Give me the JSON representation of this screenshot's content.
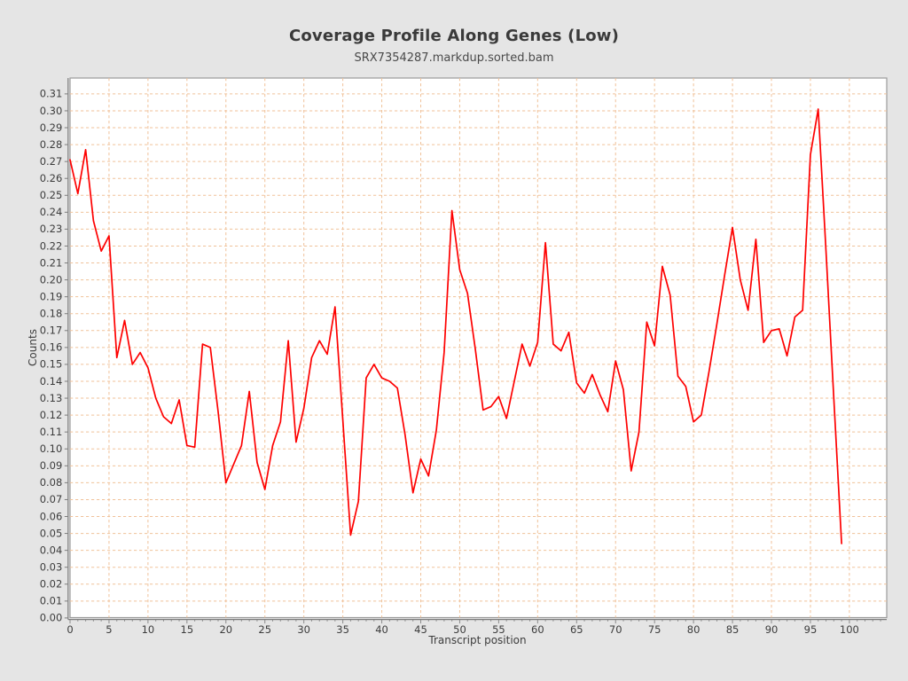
{
  "page": {
    "background_color": "#e5e5e5",
    "plot_background_color": "#ffffff"
  },
  "chart_data": {
    "type": "line",
    "title": "Coverage Profile Along Genes (Low)",
    "subtitle": "SRX7354287.markdup.sorted.bam",
    "xlabel": "Transcript position",
    "ylabel": "Counts",
    "xlim": [
      0,
      100
    ],
    "ylim": [
      0.0,
      0.31
    ],
    "grid": true,
    "grid_style": "dashed",
    "grid_color": "#f0c29a",
    "legend_position": "none",
    "x_major_tick_step": 5,
    "x_minor_tick_step": 1,
    "y_tick_step": 0.01,
    "x_tick_labels": [
      "0",
      "5",
      "10",
      "15",
      "20",
      "25",
      "30",
      "35",
      "40",
      "45",
      "50",
      "55",
      "60",
      "65",
      "70",
      "75",
      "80",
      "85",
      "90",
      "95",
      "100"
    ],
    "y_tick_labels": [
      "0.00",
      "0.01",
      "0.02",
      "0.03",
      "0.04",
      "0.05",
      "0.06",
      "0.07",
      "0.08",
      "0.09",
      "0.10",
      "0.11",
      "0.12",
      "0.13",
      "0.14",
      "0.15",
      "0.16",
      "0.17",
      "0.18",
      "0.19",
      "0.20",
      "0.21",
      "0.22",
      "0.23",
      "0.24",
      "0.25",
      "0.26",
      "0.27",
      "0.28",
      "0.29",
      "0.30",
      "0.31"
    ],
    "series": [
      {
        "name": "SRX7354287.markdup.sorted.bam",
        "color": "#fe0000",
        "x_start": 0,
        "x_step": 1,
        "n_points": 100,
        "values": [
          0.271,
          0.251,
          0.277,
          0.235,
          0.217,
          0.226,
          0.154,
          0.176,
          0.15,
          0.157,
          0.148,
          0.13,
          0.119,
          0.115,
          0.129,
          0.102,
          0.101,
          0.162,
          0.16,
          0.122,
          0.08,
          0.091,
          0.102,
          0.134,
          0.092,
          0.076,
          0.102,
          0.116,
          0.164,
          0.104,
          0.124,
          0.154,
          0.164,
          0.156,
          0.184,
          0.117,
          0.049,
          0.069,
          0.142,
          0.15,
          0.142,
          0.14,
          0.136,
          0.108,
          0.074,
          0.094,
          0.084,
          0.111,
          0.157,
          0.241,
          0.206,
          0.192,
          0.159,
          0.123,
          0.125,
          0.131,
          0.118,
          0.14,
          0.162,
          0.149,
          0.163,
          0.222,
          0.162,
          0.158,
          0.169,
          0.139,
          0.133,
          0.144,
          0.132,
          0.122,
          0.152,
          0.135,
          0.087,
          0.11,
          0.175,
          0.161,
          0.208,
          0.191,
          0.143,
          0.137,
          0.116,
          0.12,
          0.146,
          0.174,
          0.203,
          0.231,
          0.2,
          0.182,
          0.224,
          0.163,
          0.17,
          0.171,
          0.155,
          0.178,
          0.182,
          0.274,
          0.301,
          0.217,
          0.13,
          0.044
        ]
      }
    ]
  }
}
